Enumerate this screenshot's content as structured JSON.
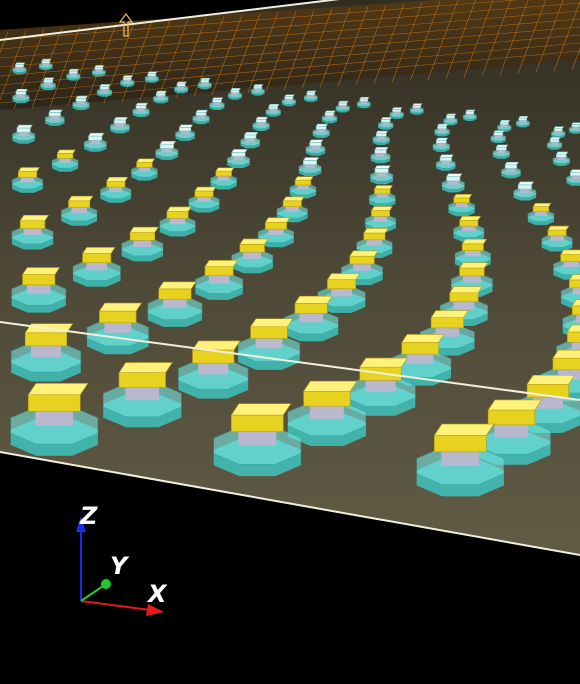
{
  "viewport": {
    "background": "#000000",
    "substrate_color": "#5f5944",
    "substrate_edge_color": "#f2f0dc",
    "pad_color": "#3bd3cf",
    "pad_top_color": "#78e6e2",
    "bump_color": "#e6d21f",
    "bump_top_color": "#fff27a",
    "pillar_color": "#b9b8cf",
    "wire_color": "#d07a1c",
    "far_cap_color": "#d9f4f2"
  },
  "axis_triad": {
    "x_label": "X",
    "y_label": "Y",
    "z_label": "Z",
    "x_color": "#e11b1b",
    "y_color": "#21c92a",
    "z_color": "#1b2be6"
  },
  "up_arrow_icon": "up-arrow-icon"
}
